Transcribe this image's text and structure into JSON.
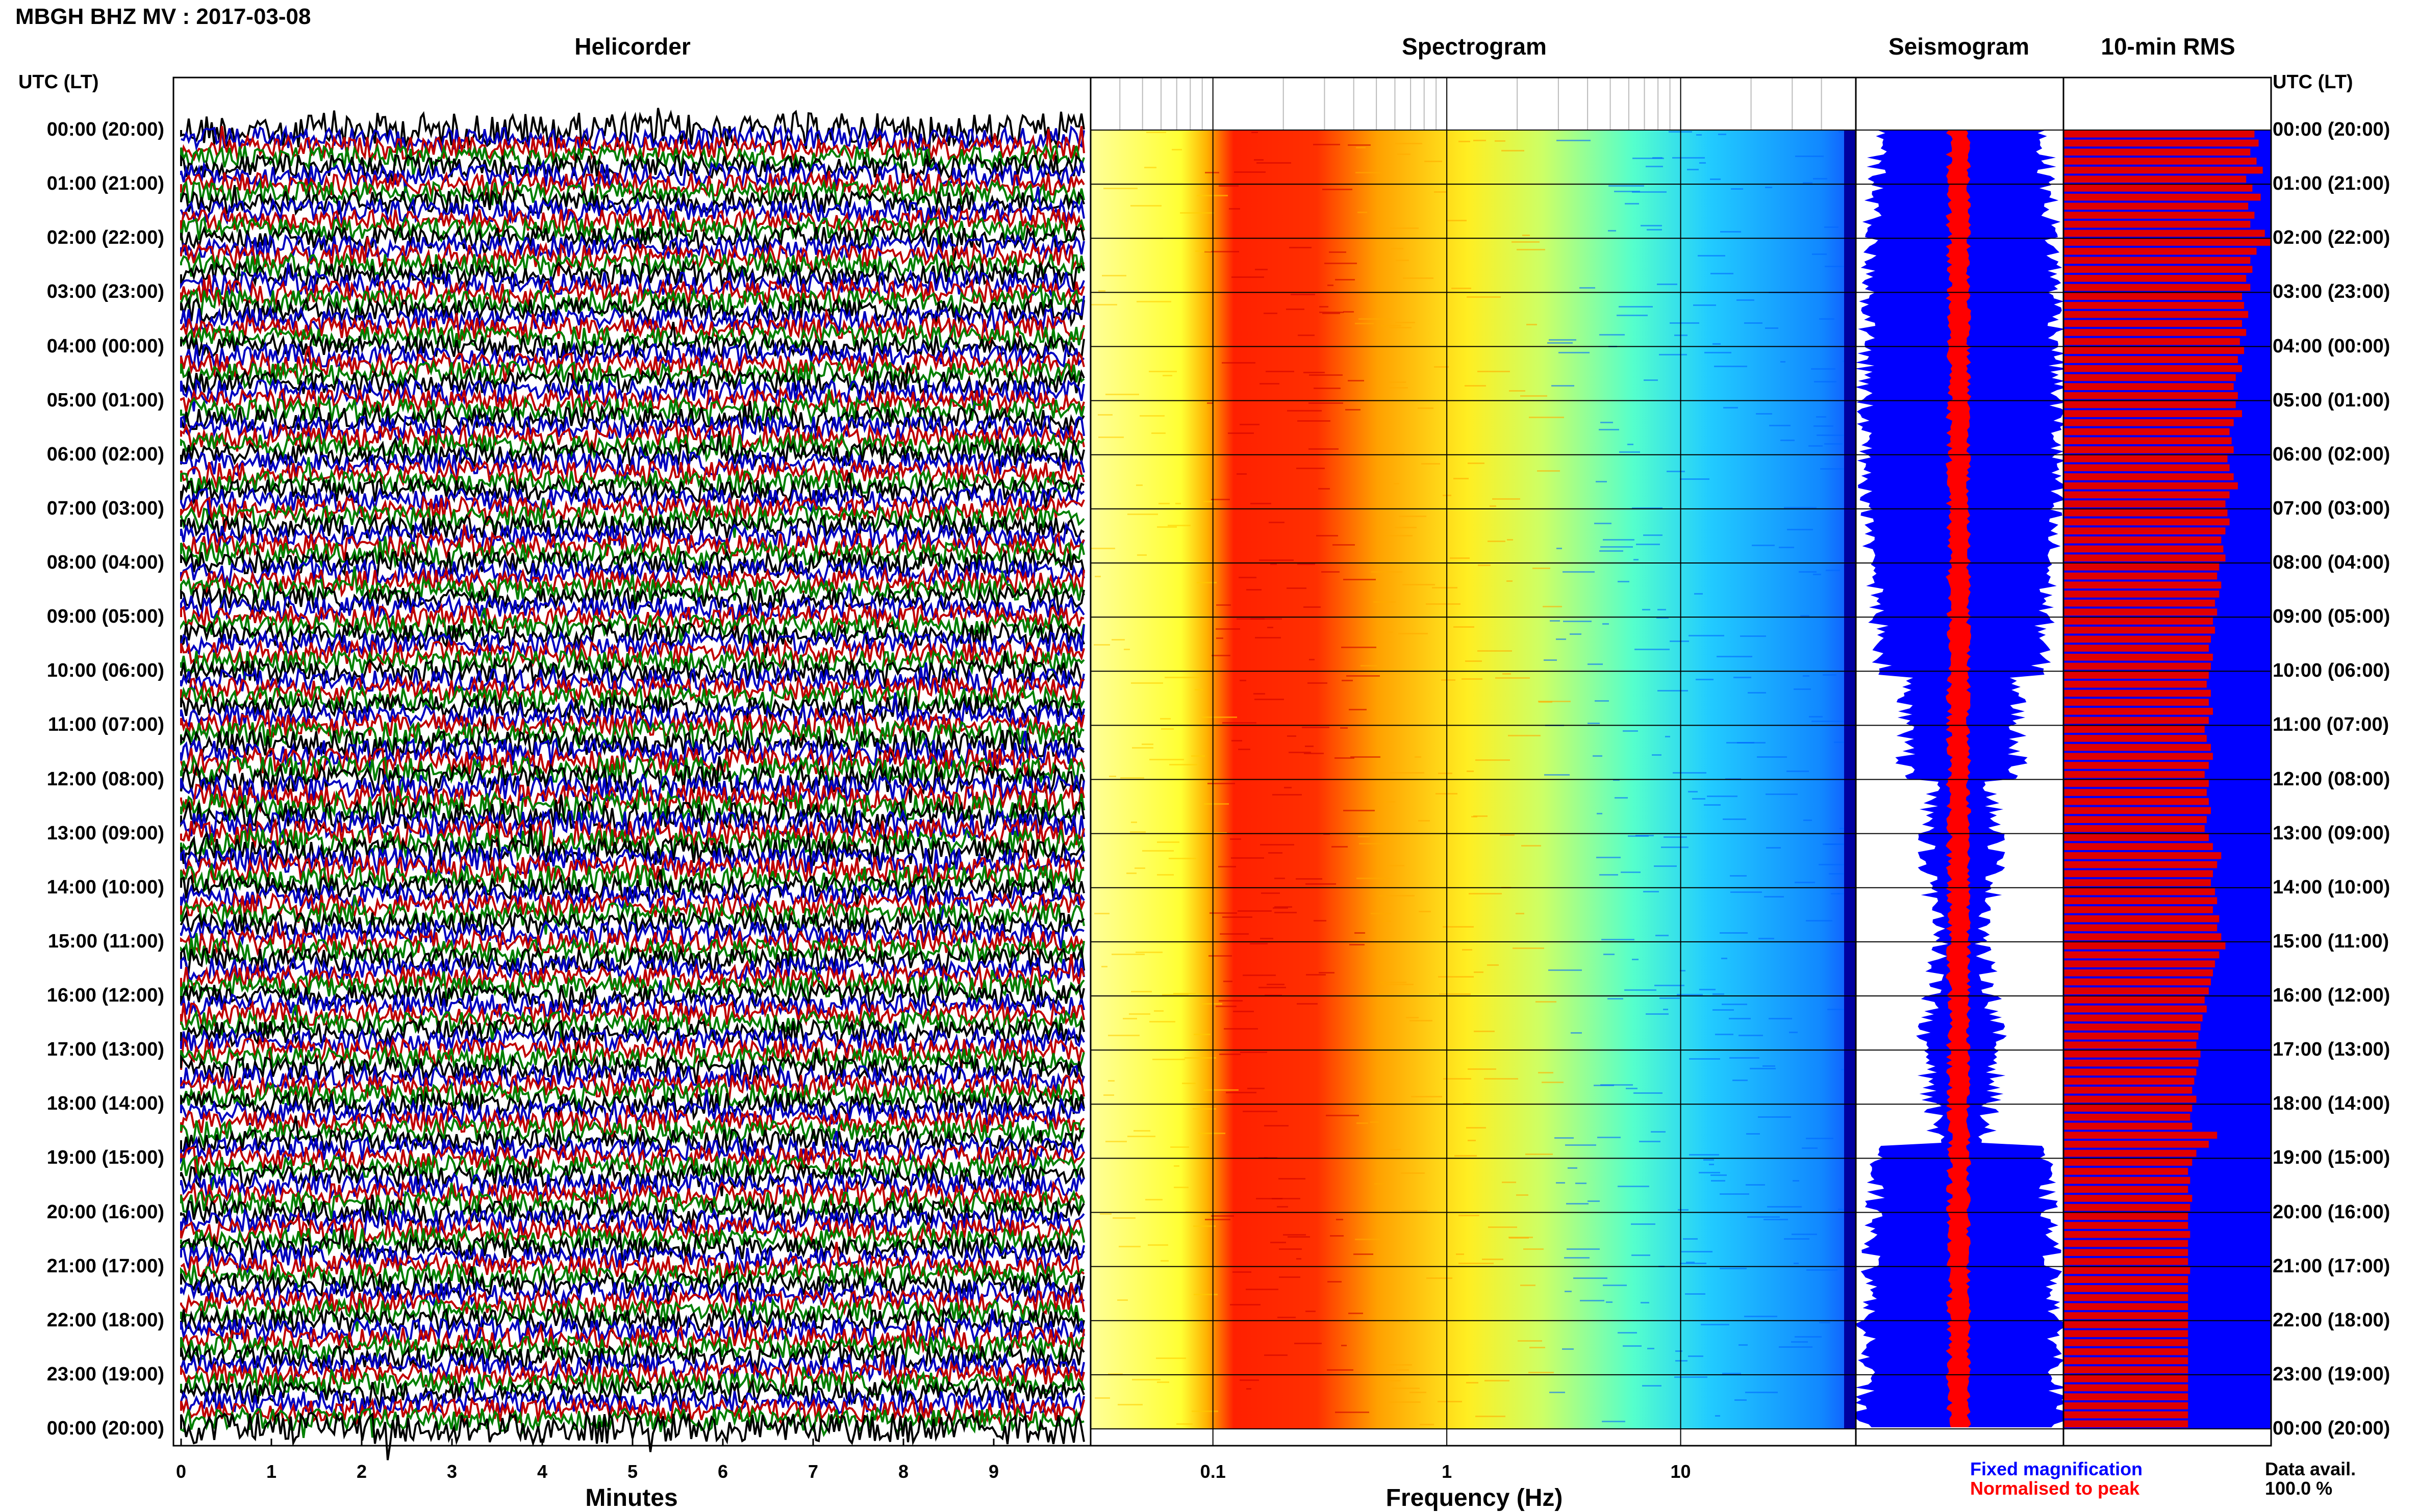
{
  "header": {
    "title": "MBGH BHZ MV : 2017-03-08"
  },
  "panels": {
    "helicorder": "Helicorder",
    "spectrogram": "Spectrogram",
    "seismogram": "Seismogram",
    "rms": "10-min RMS"
  },
  "utc_label": "UTC (LT)",
  "time_labels": [
    "00:00 (20:00)",
    "01:00 (21:00)",
    "02:00 (22:00)",
    "03:00 (23:00)",
    "04:00 (00:00)",
    "05:00 (01:00)",
    "06:00 (02:00)",
    "07:00 (03:00)",
    "08:00 (04:00)",
    "09:00 (05:00)",
    "10:00 (06:00)",
    "11:00 (07:00)",
    "12:00 (08:00)",
    "13:00 (09:00)",
    "14:00 (10:00)",
    "15:00 (11:00)",
    "16:00 (12:00)",
    "17:00 (13:00)",
    "18:00 (14:00)",
    "19:00 (15:00)",
    "20:00 (16:00)",
    "21:00 (17:00)",
    "22:00 (18:00)",
    "23:00 (19:00)",
    "00:00 (20:00)"
  ],
  "footer": {
    "minutes_label": "Minutes",
    "frequency_label": "Frequency (Hz)",
    "legend_fixed": "Fixed magnification",
    "legend_normalised": "Normalised to peak",
    "data_avail_label": "Data avail.",
    "data_avail_value": "100.0 %"
  },
  "colors": {
    "trace_cycle": [
      "#000000",
      "#0000c0",
      "#c00000",
      "#008000"
    ],
    "seismogram_fixed": "#0000ff",
    "seismogram_normalised": "#ff0000",
    "rms_bar": "#e00000",
    "rms_background": "#0000ff",
    "spectrogram_cmap": [
      "#ffff99",
      "#ffff00",
      "#ffa500",
      "#ff0000",
      "#ffa500",
      "#ffff00",
      "#00ffff",
      "#00aaff"
    ]
  },
  "chart_data": [
    {
      "type": "line",
      "name": "Helicorder",
      "xlabel": "Minutes",
      "xticks": [
        0,
        1,
        2,
        3,
        4,
        5,
        6,
        7,
        8,
        9
      ],
      "xlim": [
        0,
        10
      ],
      "ylabel": "UTC (LT)",
      "rows_per_hour": 6,
      "hours": 24
    },
    {
      "type": "heatmap",
      "name": "Spectrogram",
      "xlabel": "Frequency (Hz)",
      "xscale": "log",
      "xticks": [
        0.1,
        1,
        10
      ],
      "xlim": [
        0.03,
        50
      ],
      "peak_band_hz": [
        0.15,
        0.4
      ],
      "secondary_band_hz": [
        2,
        5
      ]
    },
    {
      "type": "area",
      "name": "Seismogram",
      "series": [
        {
          "name": "Fixed magnification",
          "color": "#0000ff"
        },
        {
          "name": "Normalised to peak",
          "color": "#ff0000"
        }
      ]
    },
    {
      "type": "bar",
      "name": "10-min RMS",
      "bars": 144,
      "values_relative": [
        0.92,
        0.94,
        0.9,
        0.93,
        0.96,
        0.88,
        0.91,
        0.95,
        0.89,
        0.92,
        0.9,
        0.97,
        1.0,
        0.93,
        0.9,
        0.91,
        0.88,
        0.9,
        0.86,
        0.87,
        0.89,
        0.86,
        0.88,
        0.85,
        0.87,
        0.84,
        0.86,
        0.83,
        0.82,
        0.84,
        0.83,
        0.86,
        0.82,
        0.8,
        0.81,
        0.82,
        0.79,
        0.8,
        0.82,
        0.84,
        0.8,
        0.78,
        0.79,
        0.8,
        0.78,
        0.76,
        0.77,
        0.78,
        0.75,
        0.74,
        0.76,
        0.75,
        0.73,
        0.74,
        0.72,
        0.73,
        0.71,
        0.7,
        0.72,
        0.71,
        0.7,
        0.69,
        0.71,
        0.7,
        0.72,
        0.7,
        0.68,
        0.69,
        0.71,
        0.72,
        0.7,
        0.68,
        0.7,
        0.69,
        0.7,
        0.71,
        0.69,
        0.68,
        0.7,
        0.72,
        0.76,
        0.74,
        0.72,
        0.71,
        0.73,
        0.74,
        0.72,
        0.75,
        0.74,
        0.76,
        0.78,
        0.75,
        0.73,
        0.72,
        0.71,
        0.7,
        0.68,
        0.69,
        0.67,
        0.66,
        0.65,
        0.64,
        0.66,
        0.65,
        0.64,
        0.63,
        0.62,
        0.64,
        0.62,
        0.61,
        0.62,
        0.74,
        0.7,
        0.64,
        0.62,
        0.6,
        0.61,
        0.6,
        0.62,
        0.61,
        0.6,
        0.6,
        0.61,
        0.6,
        0.6,
        0.6,
        0.61,
        0.6,
        0.6,
        0.6,
        0.6,
        0.6,
        0.6,
        0.6,
        0.6,
        0.6,
        0.6,
        0.6,
        0.6,
        0.6,
        0.6,
        0.6,
        0.6,
        0.6
      ]
    }
  ]
}
